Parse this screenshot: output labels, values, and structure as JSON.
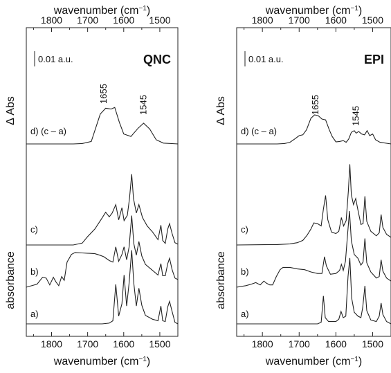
{
  "chart_data": [
    {
      "type": "line",
      "title": "QNC",
      "x_label_top": "wavenumber (cm-1)",
      "x_label_bottom": "wavenumber (cm-1)",
      "ylabel_top": "Δ Abs",
      "ylabel_bottom": "absorbance",
      "xlim": [
        1870,
        1450
      ],
      "x_ticks": [
        1800,
        1700,
        1600,
        1500
      ],
      "scale_bar": "0.01 a.u.",
      "annotations": [
        "1655",
        "1545"
      ],
      "series": [
        {
          "name": "d) (c – a)",
          "baseline": 0,
          "points": [
            [
              1870,
              0
            ],
            [
              1740,
              0
            ],
            [
              1715,
              0.01
            ],
            [
              1690,
              0.06
            ],
            [
              1665,
              0.72
            ],
            [
              1650,
              0.86
            ],
            [
              1635,
              0.84
            ],
            [
              1625,
              0.88
            ],
            [
              1612,
              0.52
            ],
            [
              1600,
              0.24
            ],
            [
              1580,
              0.18
            ],
            [
              1560,
              0.38
            ],
            [
              1545,
              0.5
            ],
            [
              1528,
              0.36
            ],
            [
              1510,
              0.1
            ],
            [
              1490,
              0.02
            ],
            [
              1450,
              0
            ]
          ]
        },
        {
          "name": "c)",
          "baseline": 0,
          "points": [
            [
              1870,
              0
            ],
            [
              1740,
              0
            ],
            [
              1715,
              0.05
            ],
            [
              1700,
              0.22
            ],
            [
              1680,
              0.42
            ],
            [
              1662,
              0.68
            ],
            [
              1650,
              0.86
            ],
            [
              1640,
              0.74
            ],
            [
              1632,
              0.84
            ],
            [
              1622,
              1.06
            ],
            [
              1614,
              0.66
            ],
            [
              1605,
              0.98
            ],
            [
              1599,
              0.64
            ],
            [
              1590,
              0.78
            ],
            [
              1584,
              1.22
            ],
            [
              1578,
              1.86
            ],
            [
              1573,
              1.22
            ],
            [
              1565,
              0.84
            ],
            [
              1558,
              1.06
            ],
            [
              1548,
              0.72
            ],
            [
              1535,
              0.5
            ],
            [
              1520,
              0.34
            ],
            [
              1505,
              0.14
            ],
            [
              1497,
              0.52
            ],
            [
              1492,
              0.12
            ],
            [
              1485,
              0.04
            ],
            [
              1478,
              0.42
            ],
            [
              1473,
              0.56
            ],
            [
              1466,
              0.3
            ],
            [
              1458,
              0.06
            ],
            [
              1450,
              0.02
            ]
          ]
        },
        {
          "name": "b)",
          "baseline": 0,
          "points": [
            [
              1870,
              0
            ],
            [
              1840,
              0.08
            ],
            [
              1825,
              0.26
            ],
            [
              1815,
              0.24
            ],
            [
              1805,
              0.06
            ],
            [
              1795,
              0.26
            ],
            [
              1788,
              0.14
            ],
            [
              1780,
              0.04
            ],
            [
              1772,
              0.28
            ],
            [
              1765,
              0.18
            ],
            [
              1757,
              0.66
            ],
            [
              1745,
              0.86
            ],
            [
              1735,
              0.91
            ],
            [
              1715,
              0.9
            ],
            [
              1695,
              0.89
            ],
            [
              1680,
              0.88
            ],
            [
              1666,
              0.84
            ],
            [
              1655,
              0.8
            ],
            [
              1640,
              0.7
            ],
            [
              1630,
              0.66
            ],
            [
              1622,
              1.06
            ],
            [
              1614,
              0.68
            ],
            [
              1605,
              0.86
            ],
            [
              1599,
              1.06
            ],
            [
              1592,
              0.72
            ],
            [
              1585,
              1.06
            ],
            [
              1578,
              1.88
            ],
            [
              1572,
              1.14
            ],
            [
              1565,
              0.84
            ],
            [
              1558,
              1.2
            ],
            [
              1550,
              0.82
            ],
            [
              1540,
              0.6
            ],
            [
              1520,
              0.44
            ],
            [
              1505,
              0.32
            ],
            [
              1497,
              0.62
            ],
            [
              1492,
              0.3
            ],
            [
              1485,
              0.3
            ],
            [
              1478,
              0.62
            ],
            [
              1473,
              0.76
            ],
            [
              1466,
              0.46
            ],
            [
              1458,
              0.24
            ],
            [
              1450,
              0.2
            ]
          ]
        },
        {
          "name": "a)",
          "baseline": 0,
          "points": [
            [
              1870,
              0
            ],
            [
              1660,
              0
            ],
            [
              1640,
              0.02
            ],
            [
              1630,
              0.08
            ],
            [
              1622,
              1.02
            ],
            [
              1614,
              0.2
            ],
            [
              1605,
              0.52
            ],
            [
              1599,
              1.26
            ],
            [
              1592,
              0.46
            ],
            [
              1585,
              1.06
            ],
            [
              1578,
              1.9
            ],
            [
              1572,
              1.04
            ],
            [
              1565,
              0.46
            ],
            [
              1558,
              0.92
            ],
            [
              1550,
              0.48
            ],
            [
              1540,
              0.22
            ],
            [
              1520,
              0.12
            ],
            [
              1505,
              0.08
            ],
            [
              1497,
              0.46
            ],
            [
              1492,
              0.08
            ],
            [
              1485,
              0.06
            ],
            [
              1478,
              0.44
            ],
            [
              1473,
              0.58
            ],
            [
              1466,
              0.32
            ],
            [
              1458,
              0.04
            ],
            [
              1450,
              0
            ]
          ]
        }
      ]
    },
    {
      "type": "line",
      "title": "EPI",
      "x_label_top": "wavenumber (cm-1)",
      "x_label_bottom": "wavenumber (cm-1)",
      "ylabel_top": "Δ Abs",
      "ylabel_bottom": "absorbance",
      "xlim": [
        1870,
        1450
      ],
      "x_ticks": [
        1800,
        1700,
        1600,
        1500
      ],
      "scale_bar": "0.01 a.u.",
      "annotations": [
        "1655",
        "1545"
      ],
      "series": [
        {
          "name": "d) (c – a)",
          "baseline": 0,
          "points": [
            [
              1870,
              0
            ],
            [
              1760,
              0
            ],
            [
              1740,
              0.01
            ],
            [
              1725,
              0.04
            ],
            [
              1712,
              0.12
            ],
            [
              1700,
              0.2
            ],
            [
              1690,
              0.22
            ],
            [
              1680,
              0.34
            ],
            [
              1668,
              0.62
            ],
            [
              1658,
              0.7
            ],
            [
              1648,
              0.68
            ],
            [
              1638,
              0.6
            ],
            [
              1628,
              0.58
            ],
            [
              1618,
              0.34
            ],
            [
              1610,
              0.18
            ],
            [
              1600,
              0.05
            ],
            [
              1590,
              0.06
            ],
            [
              1580,
              0.08
            ],
            [
              1572,
              0.04
            ],
            [
              1565,
              0.12
            ],
            [
              1558,
              0.28
            ],
            [
              1550,
              0.32
            ],
            [
              1545,
              0.26
            ],
            [
              1538,
              0.3
            ],
            [
              1530,
              0.24
            ],
            [
              1522,
              0.22
            ],
            [
              1515,
              0.32
            ],
            [
              1508,
              0.2
            ],
            [
              1500,
              0.24
            ],
            [
              1492,
              0.1
            ],
            [
              1480,
              0.04
            ],
            [
              1450,
              0
            ]
          ]
        },
        {
          "name": "c)",
          "baseline": 0,
          "points": [
            [
              1870,
              0
            ],
            [
              1760,
              0.01
            ],
            [
              1725,
              0.03
            ],
            [
              1705,
              0.06
            ],
            [
              1690,
              0.12
            ],
            [
              1678,
              0.26
            ],
            [
              1668,
              0.42
            ],
            [
              1660,
              0.58
            ],
            [
              1650,
              0.56
            ],
            [
              1640,
              0.5
            ],
            [
              1634,
              0.94
            ],
            [
              1628,
              1.3
            ],
            [
              1622,
              0.66
            ],
            [
              1612,
              0.34
            ],
            [
              1600,
              0.3
            ],
            [
              1592,
              0.36
            ],
            [
              1585,
              0.72
            ],
            [
              1579,
              0.5
            ],
            [
              1572,
              0.64
            ],
            [
              1566,
              1.42
            ],
            [
              1562,
              2.12
            ],
            [
              1558,
              1.32
            ],
            [
              1552,
              1.06
            ],
            [
              1546,
              1.22
            ],
            [
              1540,
              0.92
            ],
            [
              1532,
              0.54
            ],
            [
              1526,
              0.56
            ],
            [
              1521,
              1.28
            ],
            [
              1516,
              0.62
            ],
            [
              1505,
              0.36
            ],
            [
              1490,
              0.24
            ],
            [
              1482,
              0.32
            ],
            [
              1477,
              0.8
            ],
            [
              1472,
              0.46
            ],
            [
              1462,
              0.28
            ],
            [
              1450,
              0.2
            ]
          ]
        },
        {
          "name": "b)",
          "baseline": 0,
          "points": [
            [
              1870,
              0
            ],
            [
              1845,
              0.04
            ],
            [
              1830,
              0.08
            ],
            [
              1818,
              0.12
            ],
            [
              1806,
              0.06
            ],
            [
              1796,
              0.16
            ],
            [
              1788,
              0.1
            ],
            [
              1780,
              0.06
            ],
            [
              1772,
              0.06
            ],
            [
              1762,
              0.28
            ],
            [
              1752,
              0.46
            ],
            [
              1744,
              0.52
            ],
            [
              1725,
              0.52
            ],
            [
              1705,
              0.48
            ],
            [
              1685,
              0.46
            ],
            [
              1668,
              0.4
            ],
            [
              1650,
              0.36
            ],
            [
              1638,
              0.36
            ],
            [
              1631,
              0.8
            ],
            [
              1626,
              0.56
            ],
            [
              1615,
              0.34
            ],
            [
              1600,
              0.36
            ],
            [
              1590,
              0.44
            ],
            [
              1585,
              0.6
            ],
            [
              1580,
              0.44
            ],
            [
              1574,
              0.68
            ],
            [
              1568,
              1.4
            ],
            [
              1563,
              2.0
            ],
            [
              1558,
              1.22
            ],
            [
              1550,
              0.86
            ],
            [
              1540,
              0.76
            ],
            [
              1532,
              0.58
            ],
            [
              1526,
              0.66
            ],
            [
              1521,
              1.28
            ],
            [
              1516,
              0.64
            ],
            [
              1505,
              0.4
            ],
            [
              1490,
              0.24
            ],
            [
              1482,
              0.28
            ],
            [
              1477,
              0.72
            ],
            [
              1472,
              0.42
            ],
            [
              1462,
              0.24
            ],
            [
              1450,
              0.16
            ]
          ]
        },
        {
          "name": "a)",
          "baseline": 0,
          "points": [
            [
              1870,
              0
            ],
            [
              1650,
              0
            ],
            [
              1640,
              0.04
            ],
            [
              1634,
              0.72
            ],
            [
              1629,
              0.16
            ],
            [
              1620,
              0.06
            ],
            [
              1600,
              0.06
            ],
            [
              1592,
              0.12
            ],
            [
              1586,
              0.32
            ],
            [
              1580,
              0.16
            ],
            [
              1573,
              0.2
            ],
            [
              1567,
              1.22
            ],
            [
              1562,
              1.7
            ],
            [
              1557,
              0.66
            ],
            [
              1550,
              0.3
            ],
            [
              1540,
              0.2
            ],
            [
              1532,
              0.16
            ],
            [
              1527,
              0.42
            ],
            [
              1521,
              0.98
            ],
            [
              1516,
              0.34
            ],
            [
              1505,
              0.1
            ],
            [
              1490,
              0.06
            ],
            [
              1482,
              0.2
            ],
            [
              1477,
              0.54
            ],
            [
              1472,
              0.24
            ],
            [
              1462,
              0.06
            ],
            [
              1450,
              0
            ]
          ]
        }
      ]
    }
  ]
}
